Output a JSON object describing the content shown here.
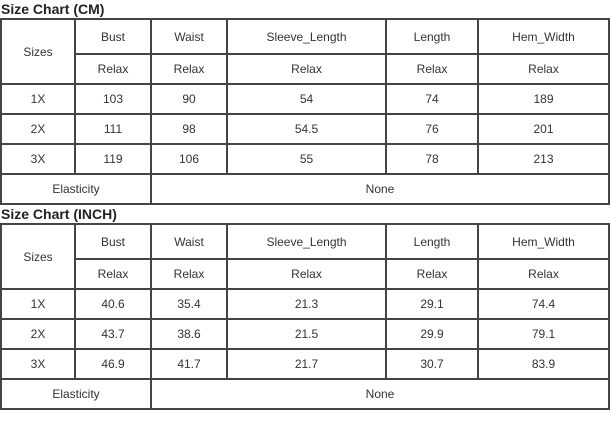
{
  "tables": [
    {
      "title": "Size Chart (CM)",
      "sizes_label": "Sizes",
      "headers": [
        "Bust",
        "Waist",
        "Sleeve_Length",
        "Length",
        "Hem_Width"
      ],
      "fit": [
        "Relax",
        "Relax",
        "Relax",
        "Relax",
        "Relax"
      ],
      "rows": [
        [
          "1X",
          "103",
          "90",
          "54",
          "74",
          "189"
        ],
        [
          "2X",
          "111",
          "98",
          "54.5",
          "76",
          "201"
        ],
        [
          "3X",
          "119",
          "106",
          "55",
          "78",
          "213"
        ]
      ],
      "elasticity_label": "Elasticity",
      "elasticity_value": "None"
    },
    {
      "title": "Size Chart (INCH)",
      "sizes_label": "Sizes",
      "headers": [
        "Bust",
        "Waist",
        "Sleeve_Length",
        "Length",
        "Hem_Width"
      ],
      "fit": [
        "Relax",
        "Relax",
        "Relax",
        "Relax",
        "Relax"
      ],
      "rows": [
        [
          "1X",
          "40.6",
          "35.4",
          "21.3",
          "29.1",
          "74.4"
        ],
        [
          "2X",
          "43.7",
          "38.6",
          "21.5",
          "29.9",
          "79.1"
        ],
        [
          "3X",
          "46.9",
          "41.7",
          "21.7",
          "30.7",
          "83.9"
        ]
      ],
      "elasticity_label": "Elasticity",
      "elasticity_value": "None"
    }
  ]
}
